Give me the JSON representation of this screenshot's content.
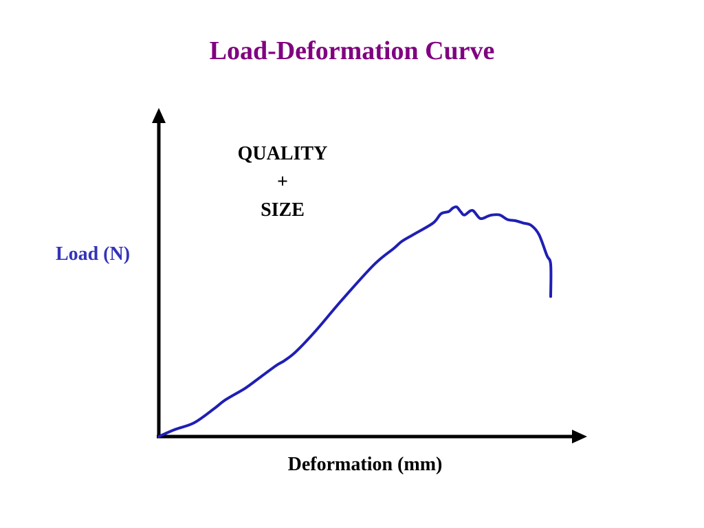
{
  "slide": {
    "title": "Load-Deformation Curve"
  },
  "colors": {
    "title": "#800080",
    "curve": "#1f1fb4",
    "ylabel": "#3333bb",
    "axis": "#000000",
    "text": "#000000"
  },
  "chart_data": {
    "type": "line",
    "title": "Load-Deformation Curve",
    "xlabel": "Deformation (mm)",
    "ylabel": "Load (N)",
    "xlim": [
      0,
      100
    ],
    "ylim": [
      0,
      100
    ],
    "ticks": false,
    "grid": false,
    "legend": "none",
    "annotation": [
      "QUALITY",
      "+",
      "SIZE"
    ],
    "series": [
      {
        "x": [
          0,
          4,
          9,
          14,
          17,
          22,
          26,
          30,
          32,
          35,
          40,
          47,
          55,
          60,
          62,
          65,
          70,
          72,
          74,
          75,
          76,
          77,
          78,
          80,
          82,
          84,
          85,
          87,
          89,
          91,
          93,
          95,
          97,
          99,
          100,
          100
        ],
        "y": [
          0,
          3,
          6,
          12,
          16,
          21,
          26,
          31,
          33,
          37,
          46,
          60,
          75,
          82,
          85,
          88,
          93,
          97,
          98,
          99.5,
          100,
          98,
          96.5,
          98.5,
          95,
          96,
          96.5,
          96.5,
          94.5,
          94,
          93,
          92,
          88,
          79,
          75,
          61
        ]
      }
    ]
  }
}
